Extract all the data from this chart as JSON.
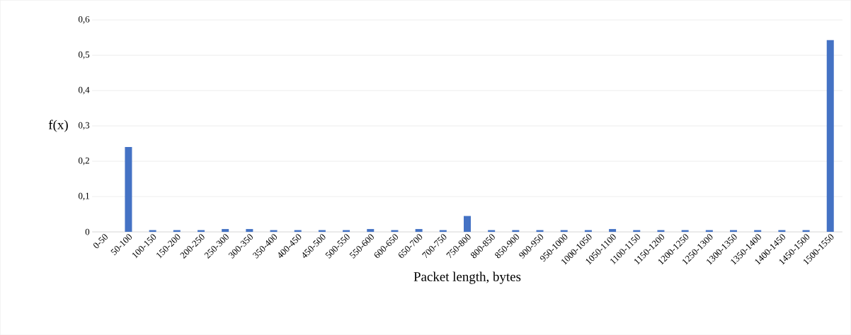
{
  "chart_data": {
    "type": "bar",
    "xlabel": "Packet length, bytes",
    "ylabel": "f(x)",
    "categories": [
      "0-50",
      "50-100",
      "100-150",
      "150-200",
      "200-250",
      "250-300",
      "300-350",
      "350-400",
      "400-450",
      "450-500",
      "500-550",
      "550-600",
      "600-650",
      "650-700",
      "700-750",
      "750-800",
      "800-850",
      "850-900",
      "900-950",
      "950-1000",
      "1000-1050",
      "1050-1100",
      "1100-1150",
      "1150-1200",
      "1200-1250",
      "1250-1300",
      "1300-1350",
      "1350-1400",
      "1400-1450",
      "1450-1500",
      "1500-1550"
    ],
    "values": [
      0,
      0.24,
      0.005,
      0.005,
      0.005,
      0.008,
      0.008,
      0.005,
      0.005,
      0.005,
      0.005,
      0.008,
      0.005,
      0.008,
      0.005,
      0.045,
      0.005,
      0.005,
      0.005,
      0.005,
      0.005,
      0.008,
      0.005,
      0.005,
      0.005,
      0.005,
      0.005,
      0.005,
      0.005,
      0.005,
      0.543
    ],
    "color": "#4472c4",
    "ylim": [
      0,
      0.6
    ],
    "yticks": [
      {
        "value": 0,
        "label": "0"
      },
      {
        "value": 0.1,
        "label": "0,1"
      },
      {
        "value": 0.2,
        "label": "0,2"
      },
      {
        "value": 0.3,
        "label": "0,3"
      },
      {
        "value": 0.4,
        "label": "0,4"
      },
      {
        "value": 0.5,
        "label": "0,5"
      },
      {
        "value": 0.6,
        "label": "0,6"
      }
    ],
    "grid": "y"
  }
}
